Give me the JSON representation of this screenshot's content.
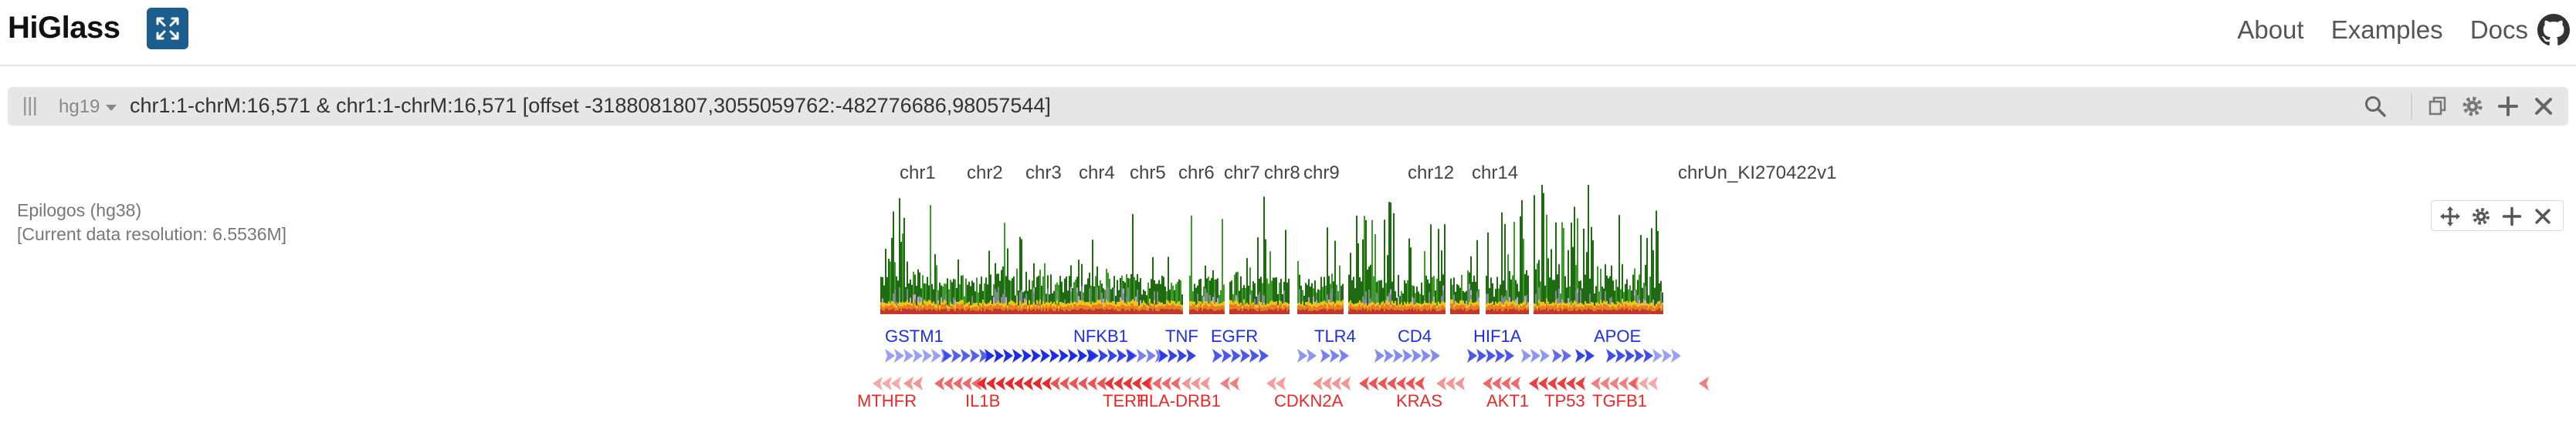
{
  "header": {
    "logo": "HiGlass",
    "nav": [
      "About",
      "Examples",
      "Docs"
    ],
    "icons": [
      "expand-view-icon",
      "github-icon"
    ]
  },
  "searchbar": {
    "assembly": "hg19",
    "locus": "chr1:1-chrM:16,571 & chr1:1-chrM:16,571 [offset -3188081807,3055059762:-482776686,98057544]",
    "icons": [
      "search-icon",
      "copy-icon",
      "settings-icon",
      "add-icon",
      "close-icon"
    ]
  },
  "chromosomes": [
    "chr1",
    "chr2",
    "chr3",
    "chr4",
    "chr5",
    "chr6",
    "chr7",
    "chr8",
    "chr9",
    "chr12",
    "chr14",
    "chrUn_KI270422v1"
  ],
  "track": {
    "name": "Epilogos (hg38)",
    "resolution": "[Current data resolution: 6.5536M]",
    "tools": [
      "move-icon",
      "settings-icon",
      "add-icon",
      "close-icon"
    ]
  },
  "genes": {
    "plus_strand": [
      "GSTM1",
      "NFKB1",
      "TNF",
      "EGFR",
      "TLR4",
      "CD4",
      "HIF1A",
      "APOE"
    ],
    "minus_strand": [
      "MTHFR",
      "IL1B",
      "TERT",
      "HLA-DRB1",
      "CDKN2A",
      "KRAS",
      "AKT1",
      "TP53",
      "TGFB1"
    ],
    "colors": {
      "plus": "#1f2ee6",
      "minus": "#e8292b"
    }
  }
}
